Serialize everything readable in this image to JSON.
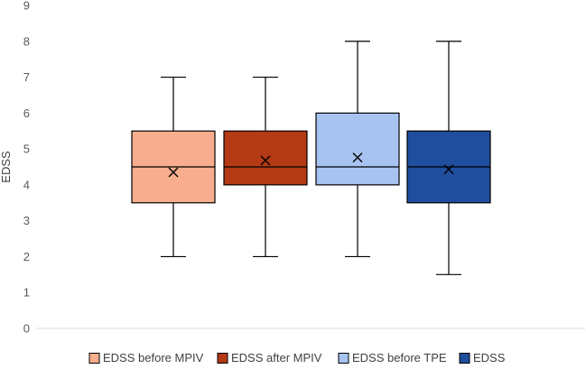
{
  "chart_data": {
    "type": "box",
    "title": "",
    "xlabel": "",
    "ylabel": "EDSS",
    "ylim": [
      0,
      9
    ],
    "yticks": [
      0,
      1,
      2,
      3,
      4,
      5,
      6,
      7,
      8,
      9
    ],
    "grid": false,
    "legend_position": "bottom",
    "series": [
      {
        "name": "EDSS before MPIV",
        "min": 2,
        "q1": 3.5,
        "median": 4.5,
        "q3": 5.5,
        "max": 7,
        "mean": 4.35,
        "color": "#F8AE8E"
      },
      {
        "name": "EDSS after MPIV",
        "min": 2,
        "q1": 4,
        "median": 4.5,
        "q3": 5.5,
        "max": 7,
        "mean": 4.68,
        "color": "#B33A14"
      },
      {
        "name": "EDSS before TPE",
        "min": 2,
        "q1": 4,
        "median": 4.5,
        "q3": 6,
        "max": 8,
        "mean": 4.76,
        "color": "#A7C4F0"
      },
      {
        "name": "EDSS",
        "min": 1.5,
        "q1": 3.5,
        "median": 4.5,
        "q3": 5.5,
        "max": 8,
        "mean": 4.43,
        "color": "#1F4E9E"
      }
    ]
  }
}
